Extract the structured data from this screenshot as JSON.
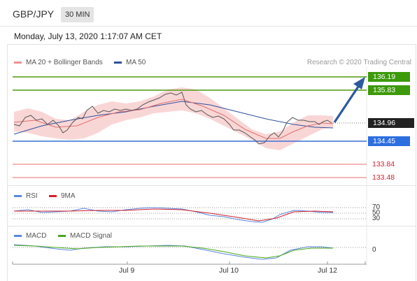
{
  "header": {
    "pair": "GBP/JPY",
    "timeframe": "30 MIN"
  },
  "datetime": "Monday, July 13, 2020 1:17:07 AM CET",
  "legend": {
    "bollinger": "MA 20 + Bollinger Bands",
    "ma50": "MA 50",
    "credit": "Research © 2020 Trading Central"
  },
  "levels": {
    "r2": "136.19",
    "r1": "135.83",
    "price": "134.96",
    "s1": "134.45",
    "s2": "133.84",
    "s3": "133.48"
  },
  "rsi": {
    "label": "RSI",
    "ma_label": "9MA",
    "tick_70": "70",
    "tick_50": "50",
    "tick_30": "30"
  },
  "macd": {
    "label": "MACD",
    "signal_label": "MACD Signal",
    "tick_0": "0"
  },
  "xaxis": {
    "labels": [
      "Jul 9",
      "Jul 10",
      "Jul 12"
    ]
  },
  "colors": {
    "resistance": "#4f9a12",
    "support": "#3a6fd8",
    "red_level": "#d0202a",
    "arrow": "#2c5aa0",
    "bands": "#f6c6c6",
    "ma20": "#e58b8b",
    "ma50": "#2d4f9c",
    "candle_up": "#3c8a14",
    "candle_down": "#c0392b",
    "rsi": "#5a86e0",
    "rsi_ma": "#d0202a",
    "macd": "#5a86e0",
    "macd_signal": "#4aa71b"
  }
}
